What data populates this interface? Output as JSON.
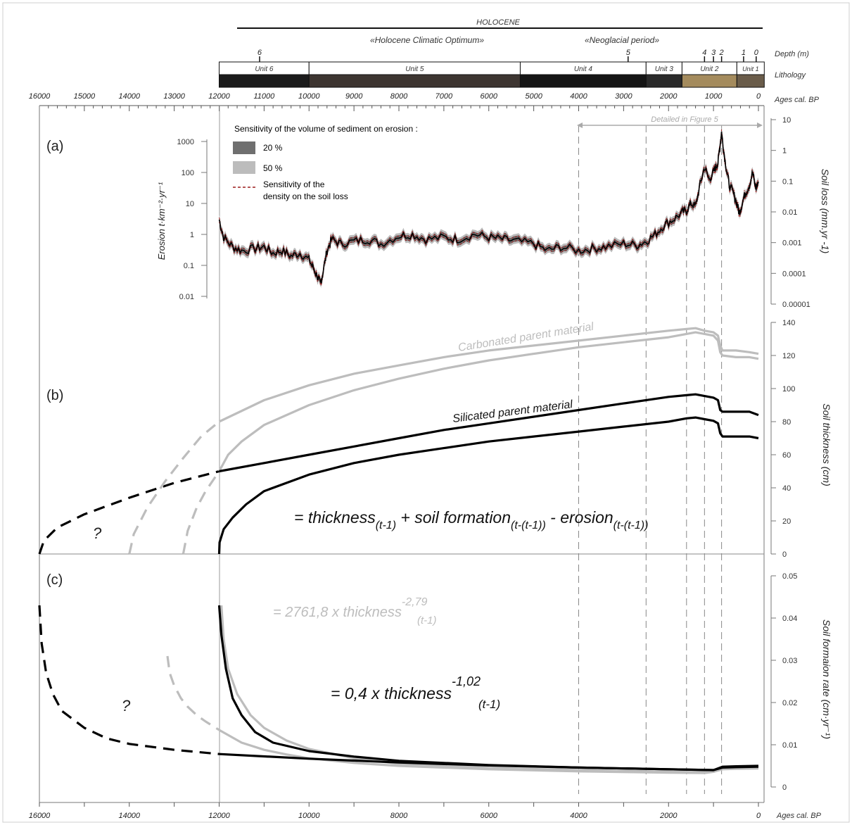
{
  "header": {
    "period": "HOLOCENE",
    "subperiods": [
      "«Holocene Climatic Optimum»",
      "«Neoglacial period»"
    ],
    "depth_label": "Depth (m)",
    "depth_marks": [
      {
        "label": "6",
        "age": 11100
      },
      {
        "label": "5",
        "age": 2900
      },
      {
        "label": "4",
        "age": 1200
      },
      {
        "label": "3",
        "age": 1000
      },
      {
        "label": "2",
        "age": 820
      },
      {
        "label": "1",
        "age": 330
      },
      {
        "label": "0",
        "age": 50
      }
    ],
    "lithology_label": "Lithology",
    "units": [
      {
        "name": "Unit 6",
        "from": 12000,
        "to": 10000,
        "color": "#1b1b1b"
      },
      {
        "name": "Unit 5",
        "from": 10000,
        "to": 5300,
        "color": "#3d3531"
      },
      {
        "name": "Unit 4",
        "from": 5300,
        "to": 2500,
        "color": "#151515"
      },
      {
        "name": "Unit 3",
        "from": 2500,
        "to": 1700,
        "color": "#2a2a2a"
      },
      {
        "name": "Unit 2",
        "from": 1700,
        "to": 480,
        "color": "#a48b5d"
      },
      {
        "name": "Unit 1",
        "from": 480,
        "to": 0,
        "color": "#6a5c4a"
      }
    ]
  },
  "top_axis": {
    "label": "Ages cal. BP",
    "ticks": [
      "16000",
      "15000",
      "14000",
      "13000",
      "12000",
      "11000",
      "10000",
      "9000",
      "8000",
      "7000",
      "6000",
      "5000",
      "4000",
      "3000",
      "2000",
      "1000",
      "0"
    ],
    "tick_values": [
      16000,
      15000,
      14000,
      13000,
      12000,
      11000,
      10000,
      9000,
      8000,
      7000,
      6000,
      5000,
      4000,
      3000,
      2000,
      1000,
      0
    ]
  },
  "bottom_axis": {
    "label": "Ages cal. BP",
    "ticks": [
      "16000",
      "14000",
      "12000",
      "10000",
      "8000",
      "6000",
      "4000",
      "2000",
      "0"
    ],
    "tick_values": [
      16000,
      14000,
      12000,
      10000,
      8000,
      6000,
      4000,
      2000,
      0
    ]
  },
  "detail_note": "Detailed in Figure 5",
  "panels": {
    "a": {
      "label": "(a)",
      "legend_title": "Sensitivity of the volume of sediment on erosion :",
      "legend_items": [
        "20 %",
        "50 %"
      ],
      "legend_dash": "Sensitivity of the",
      "legend_dash2": "density on the soil loss",
      "left_label": "Erosion t·km⁻²·yr⁻¹",
      "left_ticks": [
        "1000",
        "100",
        "10",
        "1",
        "0.1",
        "0.01"
      ],
      "right_label": "Soil loss (mm.yr -1)",
      "right_ticks": [
        "10",
        "1",
        "0.1",
        "0.01",
        "0.001",
        "0.0001",
        "0.00001"
      ]
    },
    "b": {
      "label": "(b)",
      "carbonated": "Carbonated parent material",
      "silicated": "Silicated parent material",
      "eq_main": "= thickness",
      "eq_sub1": "(t-1)",
      "eq_mid": " + soil formation",
      "eq_sub2": "(t-(t-1))",
      "eq_end": " - erosion",
      "eq_sub3": "(t-(t-1))",
      "question": "?",
      "right_label": "Soil thickness (cm)",
      "right_ticks": [
        "140",
        "120",
        "100",
        "80",
        "60",
        "40",
        "20",
        "0"
      ]
    },
    "c": {
      "label": "(c)",
      "eq_gray_main": "= 2761,8 x thickness",
      "eq_gray_sup": "-2,79",
      "eq_gray_sub": "(t-1)",
      "eq_black_main": "= 0,4 x thickness",
      "eq_black_sup": "-1,02",
      "eq_black_sub": "(t-1)",
      "question": "?",
      "right_label": "Soil formaion rate (cm·yr⁻¹)",
      "right_ticks": [
        "0.05",
        "0.04",
        "0.03",
        "0.02",
        "0.01",
        "0"
      ]
    }
  },
  "colors": {
    "black": "#000000",
    "gray": "#bdbdbd",
    "band20": "#6f6f6f",
    "band50": "#bcbcbc",
    "dash_red": "#9b1b1b"
  },
  "chart_data": [
    {
      "type": "line",
      "panel": "a",
      "xlabel": "Ages cal. BP",
      "ylabel": "Erosion t·km⁻²·yr⁻¹",
      "yscale": "log",
      "xlim": [
        12000,
        0
      ],
      "ylim": [
        0.01,
        1000
      ],
      "x": [
        12000,
        11900,
        11700,
        11500,
        11200,
        11000,
        10800,
        10600,
        10400,
        10200,
        10000,
        9900,
        9800,
        9750,
        9700,
        9600,
        9500,
        9300,
        9000,
        8700,
        8400,
        8000,
        7700,
        7400,
        7000,
        6700,
        6300,
        6000,
        5700,
        5400,
        5000,
        4700,
        4400,
        4000,
        3700,
        3400,
        3000,
        2700,
        2500,
        2300,
        2100,
        1900,
        1700,
        1600,
        1500,
        1400,
        1300,
        1200,
        1100,
        1000,
        950,
        900,
        850,
        820,
        780,
        720,
        650,
        550,
        480,
        430,
        380,
        300,
        200,
        130,
        60,
        0
      ],
      "series": [
        {
          "values": [
            3.0,
            0.8,
            0.4,
            0.3,
            0.35,
            0.4,
            0.25,
            0.3,
            0.2,
            0.25,
            0.15,
            0.08,
            0.04,
            0.025,
            0.05,
            0.3,
            0.7,
            0.5,
            0.6,
            0.7,
            0.5,
            0.9,
            1.0,
            0.7,
            0.8,
            0.7,
            1.0,
            0.8,
            0.7,
            0.6,
            0.5,
            0.3,
            0.4,
            0.3,
            0.35,
            0.4,
            0.5,
            0.45,
            0.6,
            1.0,
            2.0,
            3.0,
            5.0,
            6.0,
            10.0,
            8.0,
            40.0,
            150.0,
            60.0,
            100.0,
            150.0,
            200.0,
            900.0,
            2000.0,
            600.0,
            150.0,
            40.0,
            20.0,
            10.0,
            5.0,
            8.0,
            20.0,
            40.0,
            100.0,
            30.0,
            50.0
          ]
        }
      ]
    },
    {
      "type": "line",
      "panel": "b",
      "xlabel": "Ages cal. BP",
      "ylabel": "Soil thickness (cm)",
      "xlim": [
        16000,
        0
      ],
      "ylim": [
        0,
        140
      ],
      "series": [
        {
          "name": "Carbonated parent material",
          "upper": true,
          "x": [
            12000,
            11000,
            10000,
            9000,
            8000,
            7000,
            6000,
            5000,
            4000,
            3000,
            2000,
            1600,
            1400,
            1200,
            1000,
            900,
            850,
            800,
            500,
            200,
            0
          ],
          "values": [
            80,
            93,
            102,
            109,
            114,
            119,
            123,
            126,
            129,
            132,
            135,
            136,
            136.5,
            135,
            134,
            132,
            126,
            123,
            123,
            122,
            121
          ]
        },
        {
          "name": "Carbonated parent material",
          "upper": false,
          "x": [
            12000,
            11800,
            11500,
            11000,
            10000,
            9000,
            8000,
            7000,
            6000,
            5000,
            4000,
            3000,
            2000,
            1600,
            1400,
            1200,
            1000,
            900,
            850,
            800,
            500,
            200,
            0
          ],
          "values": [
            50,
            60,
            68,
            78,
            90,
            99,
            106,
            112,
            117,
            121,
            125,
            128,
            131,
            133,
            134,
            133,
            132,
            129,
            122,
            120,
            119,
            119,
            118
          ]
        },
        {
          "name": "Silicated parent material",
          "upper": true,
          "x": [
            12000,
            11000,
            10000,
            9000,
            8000,
            7000,
            6000,
            5000,
            4000,
            3000,
            2000,
            1600,
            1400,
            1200,
            1000,
            900,
            850,
            800,
            500,
            200,
            0
          ],
          "values": [
            50,
            55,
            60,
            65,
            70,
            75,
            79,
            83,
            87,
            91,
            95,
            96,
            96.5,
            95.5,
            94.5,
            93,
            87,
            86,
            86,
            86,
            84
          ]
        },
        {
          "name": "Silicated parent material",
          "upper": false,
          "x": [
            12000,
            11990,
            11900,
            11700,
            11400,
            11000,
            10000,
            9000,
            8000,
            7000,
            6000,
            5000,
            4000,
            3000,
            2000,
            1600,
            1400,
            1200,
            1000,
            900,
            850,
            800,
            500,
            200,
            0
          ],
          "values": [
            0,
            7,
            15,
            22,
            30,
            38,
            48,
            55,
            60,
            64,
            68,
            71,
            74,
            77,
            80,
            82,
            82.5,
            81.5,
            80.5,
            79,
            73,
            71,
            71,
            71,
            70
          ]
        }
      ],
      "extrapolated": [
        {
          "color": "black",
          "x": [
            16000,
            15900,
            15600,
            15000,
            14000,
            13000,
            12000
          ],
          "values": [
            0,
            8,
            16,
            24,
            34,
            43,
            50
          ]
        },
        {
          "color": "gray",
          "x": [
            14000,
            13900,
            13600,
            13200,
            12800,
            12400,
            12000
          ],
          "values": [
            0,
            12,
            28,
            44,
            58,
            71,
            80
          ]
        },
        {
          "color": "gray",
          "x": [
            12800,
            12700,
            12500,
            12300,
            12000
          ],
          "values": [
            0,
            14,
            28,
            38,
            50
          ]
        }
      ]
    },
    {
      "type": "line",
      "panel": "c",
      "xlabel": "Ages cal. BP",
      "ylabel": "Soil formaion rate (cm·yr⁻¹)",
      "xlim": [
        16000,
        0
      ],
      "ylim": [
        0,
        0.05
      ],
      "series": [
        {
          "name": "= 0,4 x thickness(t-1)^-1,02",
          "color": "black",
          "x": [
            12000,
            11950,
            11850,
            11700,
            11500,
            11200,
            10800,
            10000,
            9000,
            8000,
            6000,
            4000,
            2000,
            1000,
            800,
            500,
            0
          ],
          "values": [
            0.043,
            0.036,
            0.028,
            0.021,
            0.017,
            0.013,
            0.0105,
            0.0085,
            0.0072,
            0.0062,
            0.0052,
            0.0046,
            0.0042,
            0.004,
            0.0048,
            0.0049,
            0.005
          ]
        },
        {
          "name": "= 0,4 x thickness(t-1)^-1,02",
          "color": "black",
          "x": [
            12000,
            10000,
            8000,
            6000,
            4000,
            2000,
            1000,
            800,
            500,
            0
          ],
          "values": [
            0.0078,
            0.0067,
            0.0058,
            0.0051,
            0.0046,
            0.0042,
            0.004,
            0.0046,
            0.0047,
            0.0048
          ]
        },
        {
          "name": "= 2761,8 x thickness(t-1)^-2,79",
          "color": "gray",
          "x": [
            11950,
            11900,
            11800,
            11600,
            11300,
            11000,
            10500,
            10000,
            9000,
            8000,
            6000,
            4000,
            2000,
            1200,
            1000,
            800,
            500,
            0
          ],
          "values": [
            0.043,
            0.035,
            0.028,
            0.022,
            0.017,
            0.014,
            0.011,
            0.009,
            0.0068,
            0.0055,
            0.0045,
            0.004,
            0.0036,
            0.0035,
            0.0038,
            0.0044,
            0.0045,
            0.0046
          ]
        },
        {
          "name": "= 2761,8 x thickness(t-1)^-2,79",
          "color": "gray",
          "x": [
            12000,
            11500,
            11000,
            10500,
            10000,
            9000,
            8000,
            6000,
            4000,
            2000,
            1200,
            1000,
            800,
            500,
            0
          ],
          "values": [
            0.0135,
            0.0105,
            0.0088,
            0.0077,
            0.0068,
            0.0057,
            0.005,
            0.0042,
            0.0037,
            0.0034,
            0.0033,
            0.0036,
            0.0042,
            0.0043,
            0.0044
          ]
        }
      ],
      "extrapolated": [
        {
          "color": "black",
          "x": [
            16000,
            15950,
            15850,
            15700,
            15500,
            15000,
            14500,
            14000,
            13000,
            12000
          ],
          "values": [
            0.043,
            0.034,
            0.027,
            0.022,
            0.018,
            0.014,
            0.0115,
            0.0102,
            0.0088,
            0.0078
          ]
        },
        {
          "color": "gray",
          "x": [
            13150,
            13100,
            13000,
            12850,
            12700,
            12500,
            12300,
            12000
          ],
          "values": [
            0.031,
            0.027,
            0.024,
            0.021,
            0.019,
            0.017,
            0.0155,
            0.0135
          ]
        }
      ]
    }
  ]
}
